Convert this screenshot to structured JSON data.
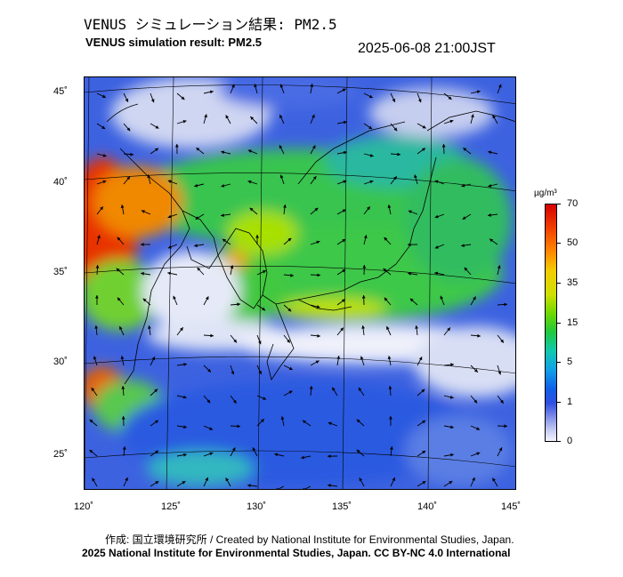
{
  "title_jp": "VENUS シミュレーション結果: PM2.5",
  "title_en": "VENUS simulation result: PM2.5",
  "datetime": "2025-06-08 21:00JST",
  "lat_labels": [
    "45˚",
    "40˚",
    "35˚",
    "30˚",
    "25˚"
  ],
  "lon_labels": [
    "120˚",
    "125˚",
    "130˚",
    "135˚",
    "140˚",
    "145˚"
  ],
  "colorbar": {
    "unit": "µg/m³",
    "ticks": [
      "70",
      "50",
      "35",
      "15",
      "5",
      "1",
      "0"
    ]
  },
  "footer": {
    "credit": "作成: 国立環境研究所 / Created by National Institute for Environmental Studies, Japan.",
    "license": "2025 National Institute for Environmental Studies, Japan. CC BY-NC 4.0 International"
  },
  "colors": {
    "low": "#3a5ce0",
    "clean": "#e8ecf8",
    "mid": "#3cc848",
    "high": "#e02000"
  }
}
